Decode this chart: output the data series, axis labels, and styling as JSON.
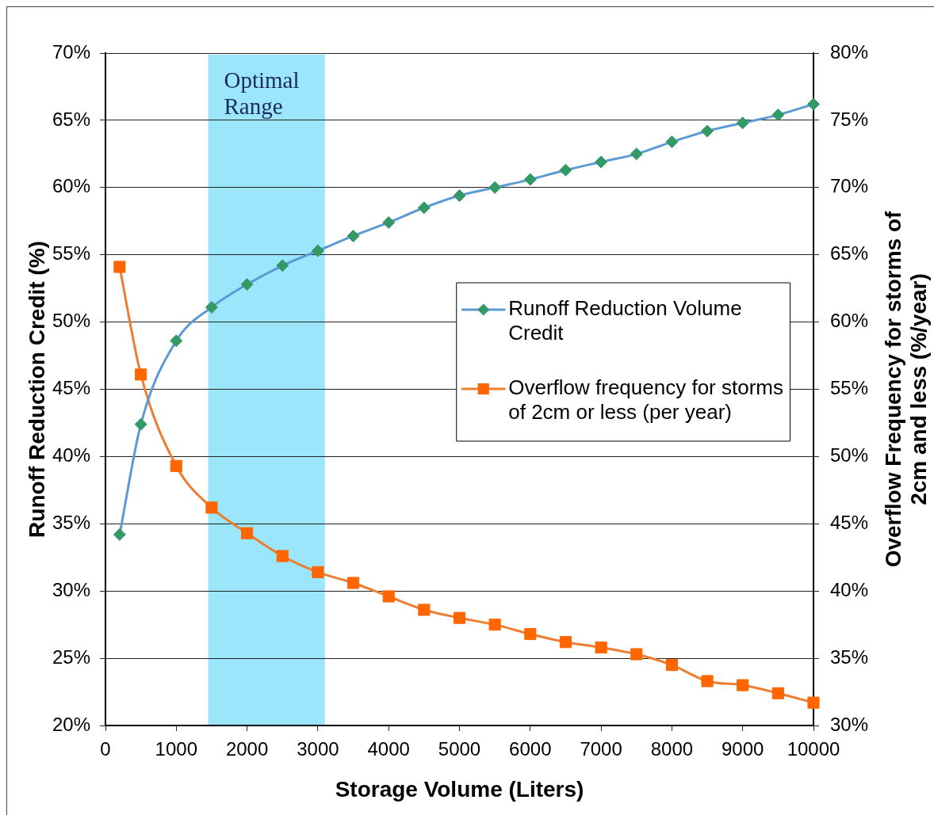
{
  "chart_data": {
    "type": "line",
    "xlabel": "Storage Volume (Liters)",
    "ylabel": "Runoff Reduction Credit (%)",
    "y2label": "Overflow Frequency for storms of 2cm and less (%/year)",
    "x": [
      200,
      500,
      1000,
      1500,
      2000,
      2500,
      3000,
      3500,
      4000,
      4500,
      5000,
      5500,
      6000,
      6500,
      7000,
      7500,
      8000,
      8500,
      9000,
      9500,
      10000
    ],
    "series": [
      {
        "name": "Runoff Reduction Volume Credit",
        "color": "#5b9bd5",
        "colors": [
          "#339966",
          "#339966",
          "#339966",
          "#339966",
          "#339966",
          "#339966",
          "#339966",
          "#339966",
          "#339966",
          "#339966",
          "#339966",
          "#339966",
          "#339966",
          "#339966",
          "#339966",
          "#339966",
          "#339966",
          "#339966",
          "#339966",
          "#339966",
          "#339966"
        ],
        "marker": "diamond",
        "values": [
          34.2,
          42.4,
          48.6,
          51.1,
          52.8,
          54.2,
          55.3,
          56.4,
          57.4,
          58.5,
          59.4,
          60.0,
          60.6,
          61.3,
          61.9,
          62.5,
          63.4,
          64.2,
          64.8,
          65.4,
          66.2
        ]
      },
      {
        "name": "Overflow frequency for storms of 2cm or less (per year)",
        "color": "#ed7d31",
        "colors": [
          "#ff6600",
          "#ff6600",
          "#ff6600",
          "#ff6600",
          "#ff6600",
          "#ff6600",
          "#ff6600",
          "#ff6600",
          "#ff6600",
          "#ff6600",
          "#ff6600",
          "#ff6600",
          "#ff6600",
          "#ff6600",
          "#ff6600",
          "#ff6600",
          "#ff6600",
          "#ff6600",
          "#ff6600",
          "#ff6600",
          "#ff6600"
        ],
        "marker": "square",
        "axis": "y2",
        "values": [
          64.1,
          56.1,
          49.3,
          46.2,
          44.3,
          42.6,
          41.4,
          40.6,
          39.6,
          38.6,
          38.0,
          37.5,
          36.8,
          36.2,
          35.8,
          35.3,
          34.5,
          33.3,
          33.0,
          32.4,
          31.7
        ]
      }
    ],
    "xlim": [
      0,
      10000
    ],
    "xticks": [
      0,
      1000,
      2000,
      3000,
      4000,
      5000,
      6000,
      7000,
      8000,
      9000,
      10000
    ],
    "ylim": [
      20,
      70
    ],
    "yticks": [
      {
        "value": 20,
        "label": "20%"
      },
      {
        "value": 25,
        "label": "25%"
      },
      {
        "value": 30,
        "label": "30%"
      },
      {
        "value": 35,
        "label": "35%"
      },
      {
        "value": 40,
        "label": "40%"
      },
      {
        "value": 45,
        "label": "45%"
      },
      {
        "value": 50,
        "label": "50%"
      },
      {
        "value": 55,
        "label": "55%"
      },
      {
        "value": 60,
        "label": "60%"
      },
      {
        "value": 65,
        "label": "65%"
      },
      {
        "value": 70,
        "label": "70%"
      }
    ],
    "y2lim": [
      30,
      80
    ],
    "y2ticks": [
      {
        "value": 30,
        "label": "30%"
      },
      {
        "value": 35,
        "label": "35%"
      },
      {
        "value": 40,
        "label": "40%"
      },
      {
        "value": 45,
        "label": "45%"
      },
      {
        "value": 50,
        "label": "50%"
      },
      {
        "value": 55,
        "label": "55%"
      },
      {
        "value": 60,
        "label": "60%"
      },
      {
        "value": 65,
        "label": "65%"
      },
      {
        "value": 70,
        "label": "70%"
      },
      {
        "value": 75,
        "label": "75%"
      },
      {
        "value": 80,
        "label": "80%"
      }
    ],
    "bands": [
      {
        "axis": "x",
        "from": 1450,
        "to": 3100,
        "label": "Optimal Range",
        "color": "#9ce6fc"
      }
    ],
    "grid": "y",
    "legend": "right",
    "line_style": "solid"
  }
}
